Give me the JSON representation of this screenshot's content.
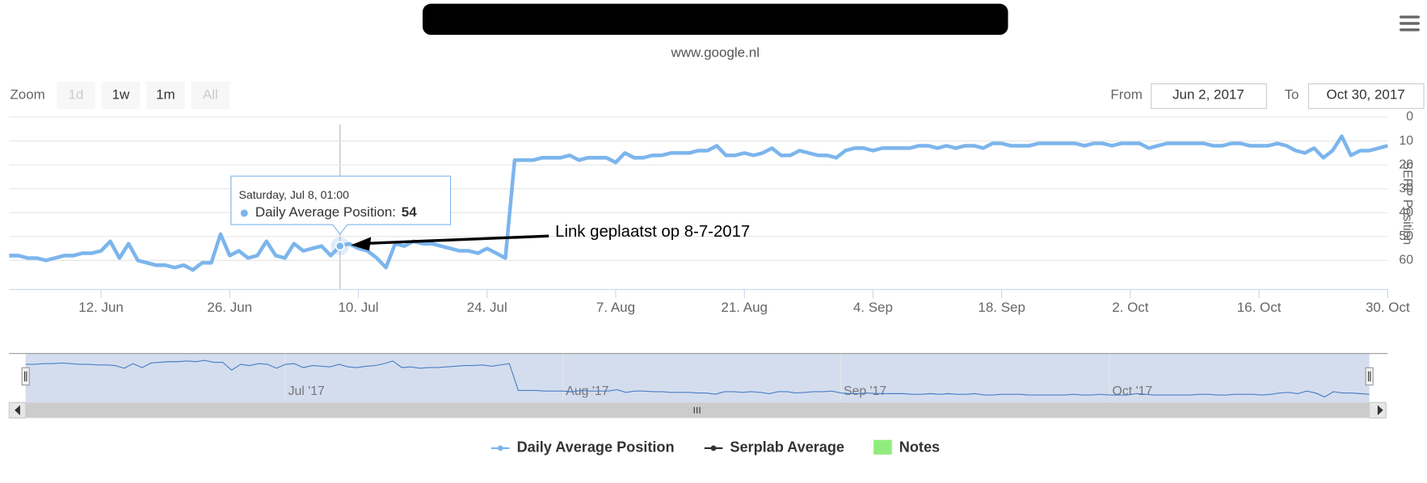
{
  "subtitle": "www.google.nl",
  "range_selector": {
    "zoom_label": "Zoom",
    "buttons": [
      "1d",
      "1w",
      "1m",
      "All"
    ],
    "disabled": [
      "1d",
      "All"
    ],
    "from_label": "From",
    "from_value": "Jun 2, 2017",
    "to_label": "To",
    "to_value": "Oct 30, 2017"
  },
  "chart_data": {
    "type": "line",
    "x": [
      "2017-06-02",
      "2017-06-03",
      "2017-06-04",
      "2017-06-05",
      "2017-06-06",
      "2017-06-07",
      "2017-06-08",
      "2017-06-09",
      "2017-06-10",
      "2017-06-11",
      "2017-06-12",
      "2017-06-13",
      "2017-06-14",
      "2017-06-15",
      "2017-06-16",
      "2017-06-17",
      "2017-06-18",
      "2017-06-19",
      "2017-06-20",
      "2017-06-21",
      "2017-06-22",
      "2017-06-23",
      "2017-06-24",
      "2017-06-25",
      "2017-06-26",
      "2017-06-27",
      "2017-06-28",
      "2017-06-29",
      "2017-06-30",
      "2017-07-01",
      "2017-07-02",
      "2017-07-03",
      "2017-07-04",
      "2017-07-05",
      "2017-07-06",
      "2017-07-07",
      "2017-07-08",
      "2017-07-09",
      "2017-07-10",
      "2017-07-11",
      "2017-07-12",
      "2017-07-13",
      "2017-07-14",
      "2017-07-15",
      "2017-07-16",
      "2017-07-17",
      "2017-07-18",
      "2017-07-19",
      "2017-07-20",
      "2017-07-21",
      "2017-07-22",
      "2017-07-23",
      "2017-07-24",
      "2017-07-25",
      "2017-07-26",
      "2017-07-27",
      "2017-07-28",
      "2017-07-29",
      "2017-07-30",
      "2017-07-31",
      "2017-08-01",
      "2017-08-02",
      "2017-08-03",
      "2017-08-04",
      "2017-08-05",
      "2017-08-06",
      "2017-08-07",
      "2017-08-08",
      "2017-08-09",
      "2017-08-10",
      "2017-08-11",
      "2017-08-12",
      "2017-08-13",
      "2017-08-14",
      "2017-08-15",
      "2017-08-16",
      "2017-08-17",
      "2017-08-18",
      "2017-08-19",
      "2017-08-20",
      "2017-08-21",
      "2017-08-22",
      "2017-08-23",
      "2017-08-24",
      "2017-08-25",
      "2017-08-26",
      "2017-08-27",
      "2017-08-28",
      "2017-08-29",
      "2017-08-30",
      "2017-08-31",
      "2017-09-01",
      "2017-09-02",
      "2017-09-03",
      "2017-09-04",
      "2017-09-05",
      "2017-09-06",
      "2017-09-07",
      "2017-09-08",
      "2017-09-09",
      "2017-09-10",
      "2017-09-11",
      "2017-09-12",
      "2017-09-13",
      "2017-09-14",
      "2017-09-15",
      "2017-09-16",
      "2017-09-17",
      "2017-09-18",
      "2017-09-19",
      "2017-09-20",
      "2017-09-21",
      "2017-09-22",
      "2017-09-23",
      "2017-09-24",
      "2017-09-25",
      "2017-09-26",
      "2017-09-27",
      "2017-09-28",
      "2017-09-29",
      "2017-09-30",
      "2017-10-01",
      "2017-10-02",
      "2017-10-03",
      "2017-10-04",
      "2017-10-05",
      "2017-10-06",
      "2017-10-07",
      "2017-10-08",
      "2017-10-09",
      "2017-10-10",
      "2017-10-11",
      "2017-10-12",
      "2017-10-13",
      "2017-10-14",
      "2017-10-15",
      "2017-10-16",
      "2017-10-17",
      "2017-10-18",
      "2017-10-19",
      "2017-10-20",
      "2017-10-21",
      "2017-10-22",
      "2017-10-23",
      "2017-10-24",
      "2017-10-25",
      "2017-10-26",
      "2017-10-27",
      "2017-10-28",
      "2017-10-29",
      "2017-10-30"
    ],
    "series": [
      {
        "name": "Daily Average Position",
        "color": "#7cb5ec",
        "values": [
          58,
          58,
          59,
          59,
          60,
          59,
          58,
          58,
          57,
          57,
          56,
          52,
          59,
          53,
          60,
          61,
          62,
          62,
          63,
          62,
          64,
          61,
          61,
          49,
          58,
          56,
          59,
          58,
          52,
          58,
          59,
          53,
          56,
          55,
          54,
          58,
          54,
          53,
          55,
          56,
          59,
          63,
          53,
          54,
          52,
          53,
          53,
          54,
          55,
          56,
          56,
          57,
          55,
          57,
          59,
          18,
          18,
          18,
          17,
          17,
          17,
          16,
          18,
          17,
          17,
          17,
          19,
          15,
          17,
          17,
          16,
          16,
          15,
          15,
          15,
          14,
          14,
          12,
          16,
          16,
          15,
          16,
          15,
          13,
          16,
          16,
          14,
          15,
          16,
          16,
          17,
          14,
          13,
          13,
          14,
          13,
          13,
          13,
          13,
          12,
          12,
          13,
          12,
          13,
          12,
          12,
          13,
          11,
          11,
          12,
          12,
          12,
          11,
          11,
          11,
          11,
          11,
          12,
          11,
          11,
          12,
          11,
          11,
          11,
          13,
          12,
          11,
          11,
          11,
          11,
          11,
          12,
          12,
          11,
          11,
          12,
          12,
          12,
          11,
          12,
          14,
          15,
          13,
          17,
          14,
          8,
          16,
          14,
          14,
          13,
          12
        ]
      }
    ],
    "xlim": [
      "2017-06-02",
      "2017-10-30"
    ],
    "xticks": [
      {
        "value": "2017-06-12",
        "label": "12. Jun"
      },
      {
        "value": "2017-06-26",
        "label": "26. Jun"
      },
      {
        "value": "2017-07-10",
        "label": "10. Jul"
      },
      {
        "value": "2017-07-24",
        "label": "24. Jul"
      },
      {
        "value": "2017-08-07",
        "label": "7. Aug"
      },
      {
        "value": "2017-08-21",
        "label": "21. Aug"
      },
      {
        "value": "2017-09-04",
        "label": "4. Sep"
      },
      {
        "value": "2017-09-18",
        "label": "18. Sep"
      },
      {
        "value": "2017-10-02",
        "label": "2. Oct"
      },
      {
        "value": "2017-10-16",
        "label": "16. Oct"
      },
      {
        "value": "2017-10-30",
        "label": "30. Oct"
      }
    ],
    "ylim": [
      0,
      72
    ],
    "yticks": [
      0,
      10,
      20,
      30,
      40,
      50,
      60
    ],
    "y_reversed": true,
    "y_title": "SERP Position",
    "grid": true,
    "navigator_ticks": [
      {
        "value": "2017-07-01",
        "label": "Jul '17"
      },
      {
        "value": "2017-08-01",
        "label": "Aug '17"
      },
      {
        "value": "2017-09-01",
        "label": "Sep '17"
      },
      {
        "value": "2017-10-01",
        "label": "Oct '17"
      }
    ],
    "tooltip": {
      "header": "Saturday, Jul 8, 01:00",
      "label": "Daily Average Position:"
    },
    "annotation": {
      "text": "Link geplaatst op 8-7-2017",
      "x": "2017-07-08"
    },
    "legend_items": [
      {
        "name": "Serplab Average",
        "color": "#333333"
      },
      {
        "name": "Notes",
        "color": "#90ed7d"
      }
    ]
  }
}
